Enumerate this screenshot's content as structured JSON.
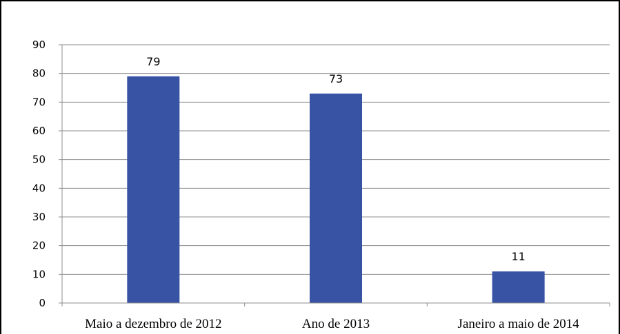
{
  "chart_data": {
    "type": "bar",
    "categories": [
      "Maio a dezembro de 2012",
      "Ano de 2013",
      "Janeiro a maio de 2014"
    ],
    "values": [
      79,
      73,
      11
    ],
    "data_labels": [
      "79",
      "73",
      "11"
    ],
    "y_ticks": [
      0,
      10,
      20,
      30,
      40,
      50,
      60,
      70,
      80,
      90
    ],
    "ylim": [
      0,
      90
    ],
    "grid": true,
    "legend": "none",
    "title": "",
    "xlabel": "",
    "ylabel": "",
    "colors": {
      "bar": "#3953A4",
      "grid": "#8C8C8C",
      "frame": "#000000"
    }
  }
}
